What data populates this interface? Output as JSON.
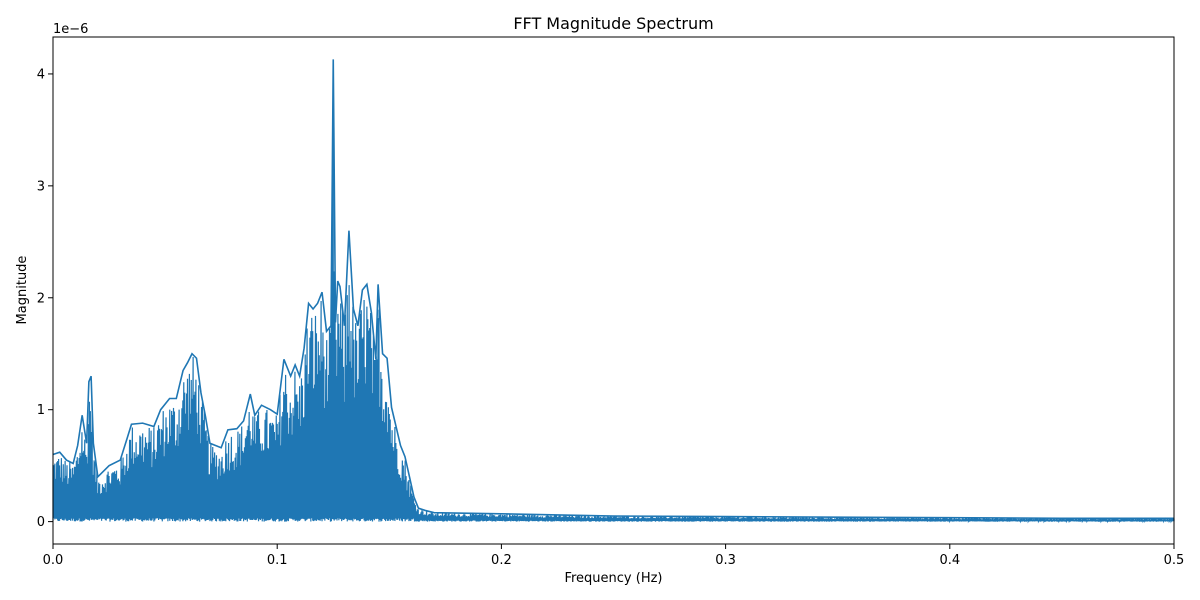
{
  "chart_data": {
    "type": "line",
    "title": "FFT Magnitude Spectrum",
    "xlabel": "Frequency (Hz)",
    "ylabel": "Magnitude",
    "y_scale_label": "1e−6",
    "xlim": [
      0,
      0.5
    ],
    "ylim": [
      -0.2,
      4.33
    ],
    "x_ticks": [
      0.0,
      0.1,
      0.2,
      0.3,
      0.4,
      0.5
    ],
    "x_tick_labels": [
      "0.0",
      "0.1",
      "0.2",
      "0.3",
      "0.4",
      "0.5"
    ],
    "y_ticks": [
      0,
      1,
      2,
      3,
      4
    ],
    "y_tick_labels": [
      "0",
      "1",
      "2",
      "3",
      "4"
    ],
    "grid": false,
    "series_color": "#1f77b4",
    "series": [
      {
        "name": "",
        "envelope": [
          [
            0.0,
            0.6
          ],
          [
            0.003,
            0.62
          ],
          [
            0.006,
            0.55
          ],
          [
            0.009,
            0.52
          ],
          [
            0.011,
            0.68
          ],
          [
            0.013,
            0.95
          ],
          [
            0.015,
            0.7
          ],
          [
            0.016,
            1.25
          ],
          [
            0.017,
            1.3
          ],
          [
            0.018,
            0.7
          ],
          [
            0.02,
            0.4
          ],
          [
            0.025,
            0.5
          ],
          [
            0.03,
            0.55
          ],
          [
            0.033,
            0.74
          ],
          [
            0.035,
            0.87
          ],
          [
            0.04,
            0.88
          ],
          [
            0.045,
            0.85
          ],
          [
            0.048,
            1.0
          ],
          [
            0.05,
            1.05
          ],
          [
            0.052,
            1.1
          ],
          [
            0.055,
            1.1
          ],
          [
            0.058,
            1.35
          ],
          [
            0.06,
            1.42
          ],
          [
            0.062,
            1.5
          ],
          [
            0.064,
            1.46
          ],
          [
            0.066,
            1.15
          ],
          [
            0.068,
            0.94
          ],
          [
            0.07,
            0.7
          ],
          [
            0.075,
            0.66
          ],
          [
            0.078,
            0.82
          ],
          [
            0.082,
            0.83
          ],
          [
            0.085,
            0.9
          ],
          [
            0.088,
            1.14
          ],
          [
            0.09,
            0.95
          ],
          [
            0.093,
            1.04
          ],
          [
            0.097,
            1.0
          ],
          [
            0.1,
            0.96
          ],
          [
            0.103,
            1.45
          ],
          [
            0.106,
            1.3
          ],
          [
            0.108,
            1.4
          ],
          [
            0.11,
            1.3
          ],
          [
            0.112,
            1.55
          ],
          [
            0.114,
            1.95
          ],
          [
            0.116,
            1.9
          ],
          [
            0.118,
            1.95
          ],
          [
            0.12,
            2.05
          ],
          [
            0.122,
            1.7
          ],
          [
            0.124,
            1.75
          ],
          [
            0.125,
            4.13
          ],
          [
            0.126,
            1.78
          ],
          [
            0.127,
            2.15
          ],
          [
            0.128,
            2.1
          ],
          [
            0.13,
            1.75
          ],
          [
            0.132,
            2.6
          ],
          [
            0.134,
            1.9
          ],
          [
            0.136,
            1.75
          ],
          [
            0.138,
            2.07
          ],
          [
            0.14,
            2.12
          ],
          [
            0.142,
            1.87
          ],
          [
            0.144,
            1.45
          ],
          [
            0.145,
            2.12
          ],
          [
            0.147,
            1.5
          ],
          [
            0.149,
            1.46
          ],
          [
            0.151,
            1.02
          ],
          [
            0.153,
            0.85
          ],
          [
            0.155,
            0.68
          ],
          [
            0.157,
            0.58
          ],
          [
            0.159,
            0.4
          ],
          [
            0.161,
            0.22
          ],
          [
            0.163,
            0.12
          ],
          [
            0.166,
            0.1
          ],
          [
            0.17,
            0.08
          ],
          [
            0.2,
            0.07
          ],
          [
            0.25,
            0.05
          ],
          [
            0.3,
            0.045
          ],
          [
            0.35,
            0.04
          ],
          [
            0.4,
            0.035
          ],
          [
            0.45,
            0.03
          ],
          [
            0.5,
            0.03
          ]
        ]
      }
    ]
  }
}
